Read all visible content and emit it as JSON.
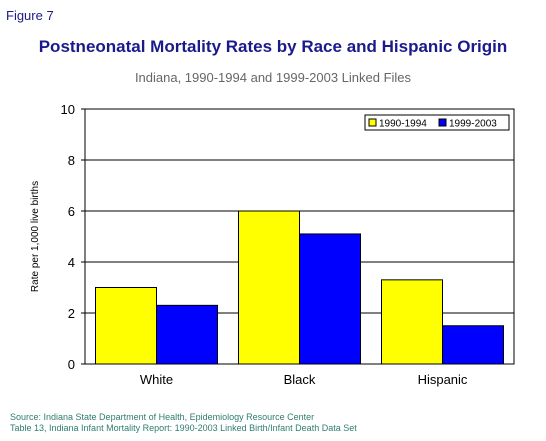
{
  "figure_label": "Figure 7",
  "source_lines": [
    "Source: Indiana State Department of Health, Epidemiology Resource Center",
    "Table 13, Indiana Infant Mortality Report: 1990-2003 Linked Birth/Infant Death Data Set"
  ],
  "colors": {
    "series1": "#ffff00",
    "series2": "#0000ff",
    "title": "#1a1a8c",
    "source": "#2e7d6f"
  },
  "chart_data": {
    "type": "bar",
    "title": "Postneonatal Mortality Rates by Race and Hispanic Origin",
    "subtitle": "Indiana, 1990-1994 and 1999-2003 Linked Files",
    "xlabel": "",
    "ylabel": "Rate per 1,000 live births",
    "categories": [
      "White",
      "Black",
      "Hispanic"
    ],
    "series": [
      {
        "name": "1990-1994",
        "values": [
          3.0,
          6.0,
          3.3
        ]
      },
      {
        "name": "1999-2003",
        "values": [
          2.3,
          5.1,
          1.5
        ]
      }
    ],
    "ylim": [
      0,
      10
    ],
    "yticks": [
      0,
      2,
      4,
      6,
      8,
      10
    ],
    "grid": true,
    "legend": "top-right"
  }
}
